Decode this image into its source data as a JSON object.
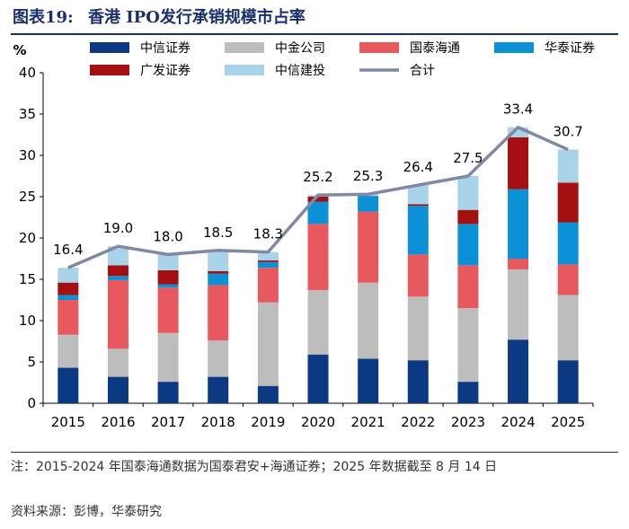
{
  "figure": {
    "number": "图表19:",
    "title": "香港 IPO发行承销规模市占率"
  },
  "note": "注：2015-2024 年国泰海通数据为国泰君安+海通证券；2025 年数据截至 8 月 14 日",
  "source": "资料来源：彭博，华泰研究",
  "colors": {
    "中信证券": "#0b3a83",
    "中金公司": "#bdbdbd",
    "国泰海通": "#e8585f",
    "华泰证券": "#0d91d6",
    "广发证券": "#a40f12",
    "中信建投": "#a9d3e9",
    "合计": "#8088a4"
  },
  "chart_data": {
    "type": "bar",
    "stacked": true,
    "ylabel": "%",
    "xlabel": "",
    "ylim": [
      0,
      40
    ],
    "yticks": [
      0,
      5,
      10,
      15,
      20,
      25,
      30,
      35,
      40
    ],
    "grid": false,
    "legend_position": "top",
    "categories": [
      "2015",
      "2016",
      "2017",
      "2018",
      "2019",
      "2020",
      "2021",
      "2022",
      "2023",
      "2024",
      "2025"
    ],
    "series": [
      {
        "name": "中信证券",
        "values": [
          4.3,
          3.2,
          2.6,
          3.2,
          2.1,
          5.9,
          5.4,
          5.2,
          2.6,
          7.7,
          5.2
        ]
      },
      {
        "name": "中金公司",
        "values": [
          4.0,
          3.4,
          5.9,
          4.4,
          10.1,
          7.8,
          9.2,
          7.7,
          8.9,
          8.5,
          7.9
        ]
      },
      {
        "name": "国泰海通",
        "values": [
          4.2,
          8.3,
          5.5,
          6.7,
          4.2,
          8.0,
          8.6,
          5.1,
          5.2,
          1.3,
          3.7
        ]
      },
      {
        "name": "华泰证券",
        "values": [
          0.6,
          0.5,
          0.4,
          1.4,
          0.7,
          2.7,
          1.9,
          5.9,
          5.0,
          8.4,
          5.1
        ]
      },
      {
        "name": "广发证券",
        "values": [
          1.5,
          1.3,
          1.7,
          0.3,
          0.2,
          0.6,
          0.0,
          0.2,
          1.7,
          6.3,
          4.8
        ]
      },
      {
        "name": "中信建投",
        "values": [
          1.8,
          2.3,
          1.9,
          2.5,
          1.0,
          0.2,
          0.2,
          2.3,
          4.1,
          1.2,
          4.0
        ]
      }
    ],
    "line": {
      "name": "合计",
      "values": [
        16.4,
        19.0,
        18.0,
        18.5,
        18.3,
        25.2,
        25.3,
        26.4,
        27.5,
        33.4,
        30.7
      ]
    }
  }
}
